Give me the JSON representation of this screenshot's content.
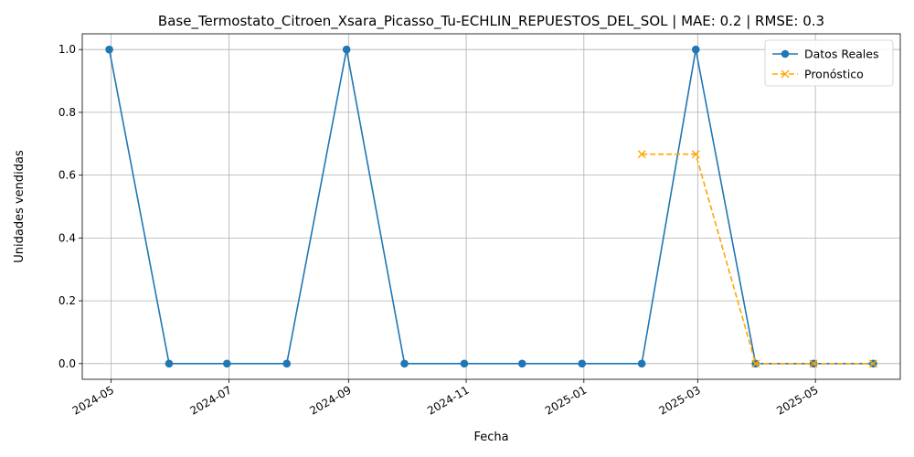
{
  "chart_data": {
    "type": "line",
    "title": "Base_Termostato_Citroen_Xsara_Picasso_Tu-ECHLIN_REPUESTOS_DEL_SOL | MAE: 0.2 | RMSE: 0.3",
    "xlabel": "Fecha",
    "ylabel": "Unidades vendidas",
    "ylim": [
      -0.05,
      1.05
    ],
    "xlim": [
      "2024-04-16",
      "2025-06-14"
    ],
    "grid": true,
    "legend_position": "top-right",
    "x_ticks": [
      "2024-05",
      "2024-07",
      "2024-09",
      "2024-11",
      "2025-01",
      "2025-03",
      "2025-05"
    ],
    "y_ticks": [
      "0.0",
      "0.2",
      "0.4",
      "0.6",
      "0.8",
      "1.0"
    ],
    "series": [
      {
        "name": "Datos Reales",
        "color": "#1f77b4",
        "style": "solid",
        "marker": "circle",
        "x": [
          "2024-04-30",
          "2024-05-31",
          "2024-06-30",
          "2024-07-31",
          "2024-08-31",
          "2024-09-30",
          "2024-10-31",
          "2024-11-30",
          "2024-12-31",
          "2025-01-31",
          "2025-02-28",
          "2025-03-31",
          "2025-04-30",
          "2025-05-31"
        ],
        "values": [
          1,
          0,
          0,
          0,
          1,
          0,
          0,
          0,
          0,
          0,
          1,
          0,
          0,
          0
        ]
      },
      {
        "name": "Pronóstico",
        "color": "#ffa500",
        "style": "dashed",
        "marker": "x",
        "x": [
          "2025-01-31",
          "2025-02-28",
          "2025-03-31",
          "2025-04-30",
          "2025-05-31"
        ],
        "values": [
          0.6667,
          0.6667,
          0,
          0,
          0
        ]
      }
    ]
  }
}
